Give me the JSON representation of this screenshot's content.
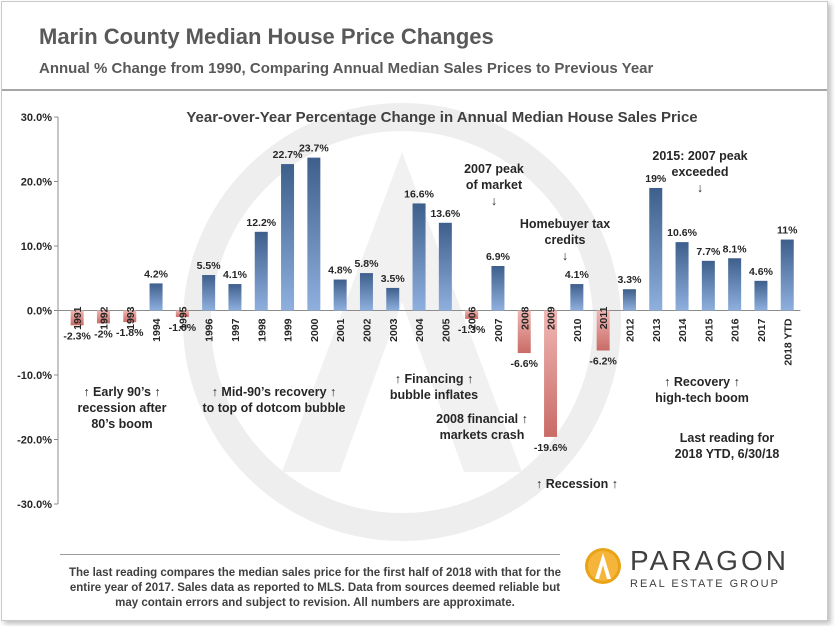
{
  "header": {
    "title": "Marin County Median House Price Changes",
    "subtitle": "Annual % Change from 1990, Comparing Annual Median Sales Prices to Previous Year"
  },
  "footnote": "The last reading compares the median sales price for the first half of 2018 with that for the entire year of 2017. Sales data as reported to MLS. Data from sources deemed reliable but may contain errors and subject to revision. All numbers are approximate.",
  "logo": {
    "name": "PARAGON",
    "tagline": "REAL ESTATE GROUP"
  },
  "colors": {
    "positive": "#4a6a96",
    "negative": "#d9827e",
    "text": "#262626"
  },
  "chart_data": {
    "type": "bar",
    "title": "Year-over-Year Percentage Change in Annual Median House Sales Price",
    "ylim": [
      -30,
      30
    ],
    "yticks": [
      "30.0%",
      "20.0%",
      "10.0%",
      "0.0%",
      "-10.0%",
      "-20.0%",
      "-30.0%"
    ],
    "categories": [
      "1991",
      "1992",
      "1993",
      "1994",
      "1995",
      "1996",
      "1997",
      "1998",
      "1999",
      "2000",
      "2001",
      "2002",
      "2003",
      "2004",
      "2005",
      "2006",
      "2007",
      "2008",
      "2009",
      "2010",
      "2011",
      "2012",
      "2013",
      "2014",
      "2015",
      "2016",
      "2017",
      "2018 YTD"
    ],
    "values": [
      -2.3,
      -2,
      -1.8,
      4.2,
      -1.0,
      5.5,
      4.1,
      12.2,
      22.7,
      23.7,
      4.8,
      5.8,
      3.5,
      16.6,
      13.6,
      -1.3,
      6.9,
      -6.6,
      -19.6,
      4.1,
      -6.2,
      3.3,
      19,
      10.6,
      7.7,
      8.1,
      4.6,
      11
    ],
    "data_labels": [
      "-2.3%",
      "-2%",
      "-1.8%",
      "4.2%",
      "-1.0%",
      "5.5%",
      "4.1%",
      "12.2%",
      "22.7%",
      "23.7%",
      "4.8%",
      "5.8%",
      "3.5%",
      "16.6%",
      "13.6%",
      "-1.3%",
      "6.9%",
      "-6.6%",
      "-19.6%",
      "4.1%",
      "-6.2%",
      "3.3%",
      "19%",
      "10.6%",
      "7.7%",
      "8.1%",
      "4.6%",
      "11%"
    ],
    "grid": false,
    "legend": "none",
    "annotations": [
      {
        "lines": [
          "↑ Early 90’s ↑",
          "recession after",
          "80’s boom"
        ]
      },
      {
        "lines": [
          "↑ Mid-90’s recovery ↑",
          "to top of dotcom bubble"
        ]
      },
      {
        "lines": [
          "↑ Financing ↑",
          "bubble inflates"
        ]
      },
      {
        "lines": [
          "2008 financial ↑",
          "markets crash"
        ]
      },
      {
        "lines": [
          "2007 peak",
          "of market",
          "↓"
        ]
      },
      {
        "lines": [
          "Homebuyer tax",
          "credits",
          "↓"
        ]
      },
      {
        "lines": [
          "↑ Recession ↑"
        ]
      },
      {
        "lines": [
          "2015: 2007 peak",
          "exceeded",
          "↓"
        ]
      },
      {
        "lines": [
          "↑    Recovery    ↑",
          "high-tech boom"
        ]
      },
      {
        "lines": [
          "Last reading for",
          "2018 YTD, 6/30/18"
        ]
      }
    ]
  }
}
